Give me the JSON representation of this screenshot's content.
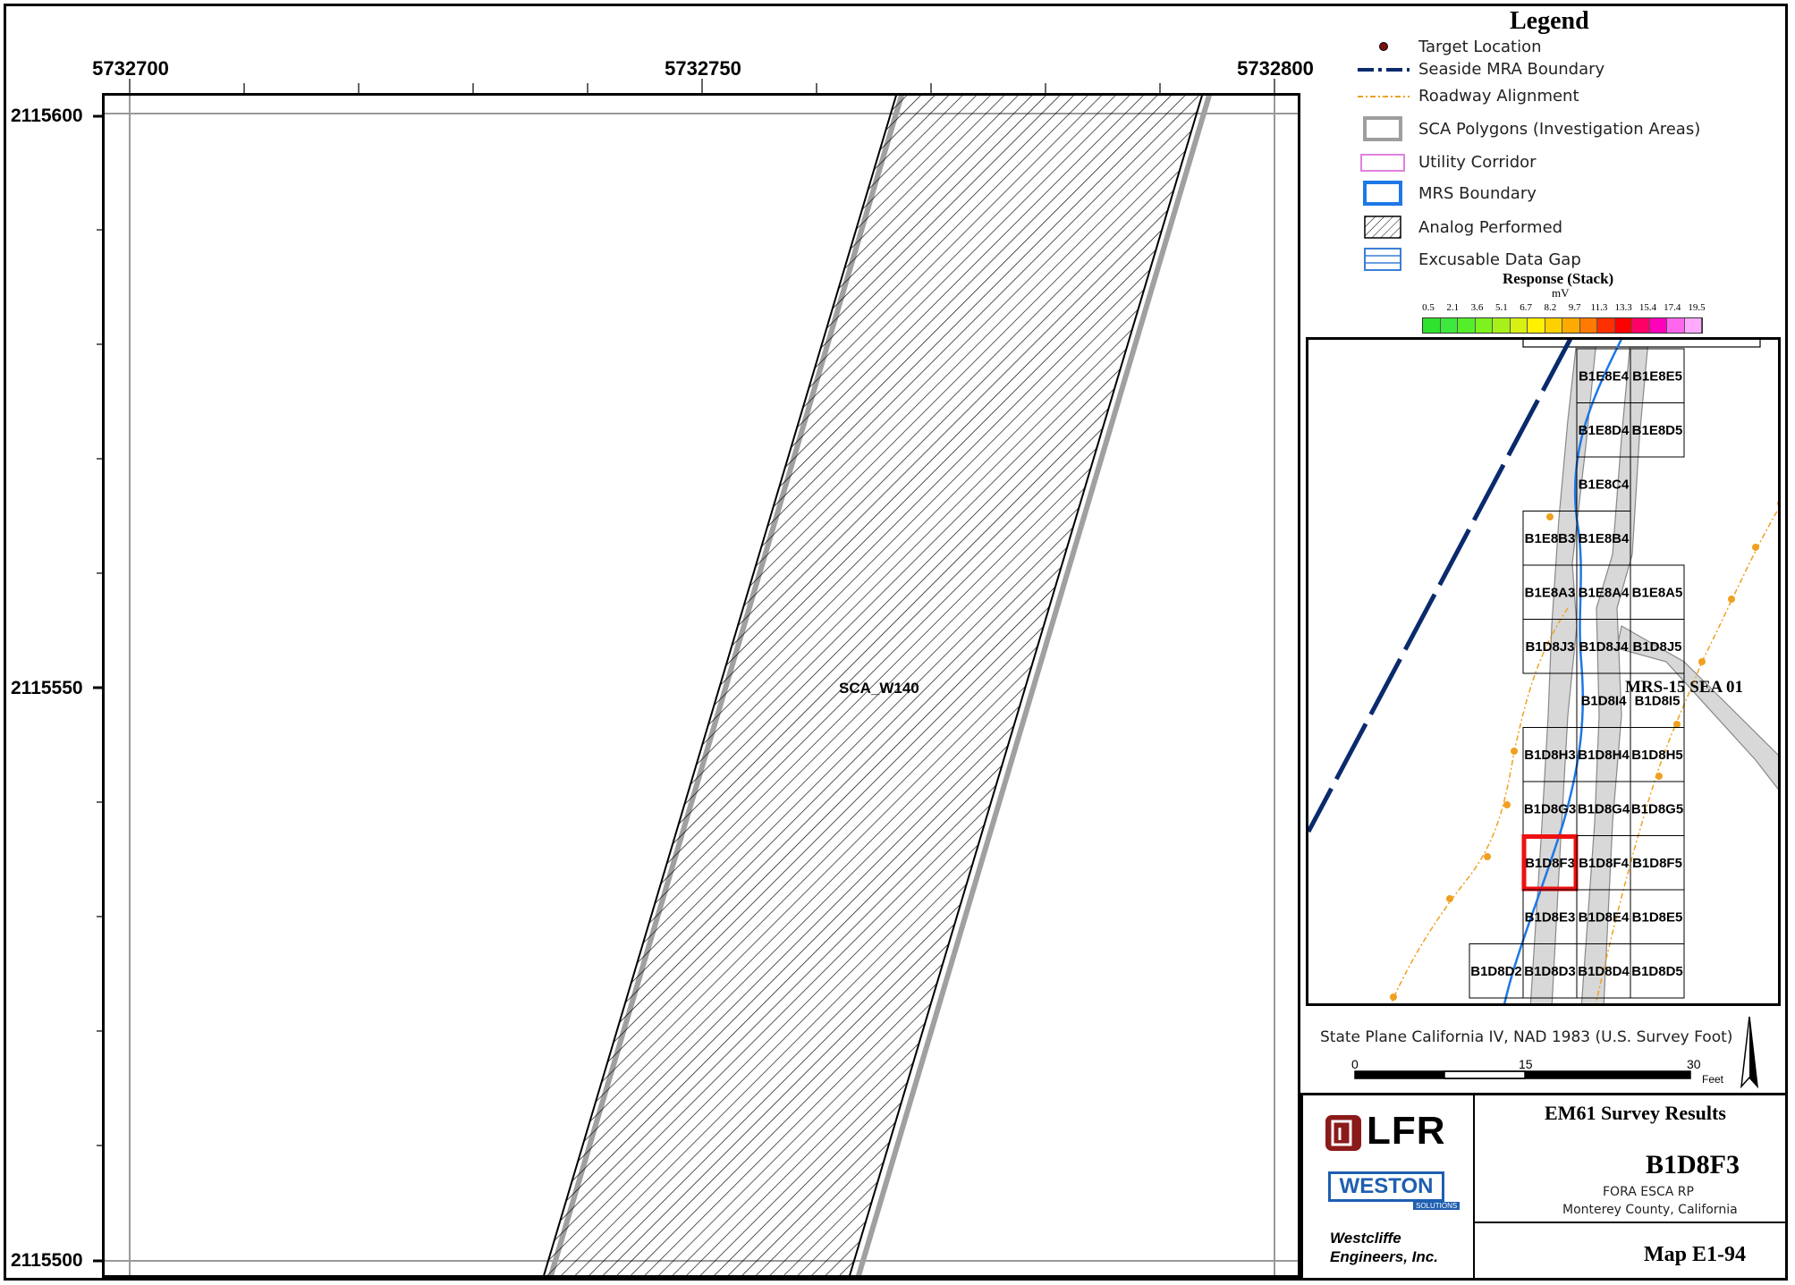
{
  "map": {
    "x_ticks": [
      "5732700",
      "5732750",
      "5732800"
    ],
    "y_ticks": [
      "2115600",
      "2115550",
      "2115500"
    ],
    "polygon_label": "SCA_W140"
  },
  "legend": {
    "title": "Legend",
    "items": [
      {
        "label": "Target Location",
        "icon": "target-dot-icon"
      },
      {
        "label": "Seaside MRA Boundary",
        "icon": "dash-dot-line-icon",
        "color": "#0a2a6e"
      },
      {
        "label": "Roadway Alignment",
        "icon": "orange-dashed-line-icon",
        "color": "#f0a020"
      },
      {
        "label": "SCA Polygons (Investigation Areas)",
        "icon": "gray-box-icon",
        "color": "#9e9e9e"
      },
      {
        "label": "Utility Corridor",
        "icon": "pink-box-icon",
        "color": "#e080e0"
      },
      {
        "label": "MRS Boundary",
        "icon": "blue-box-icon",
        "color": "#1e78e6"
      },
      {
        "label": "Analog Performed",
        "icon": "hatch-box-icon"
      },
      {
        "label": "Excusable Data Gap",
        "icon": "blue-hatch-box-icon",
        "color": "#3a7fd6"
      }
    ],
    "response": {
      "title": "Response (Stack)",
      "unit": "mV",
      "ticks": [
        "0.5",
        "2.1",
        "3.6",
        "5.1",
        "6.7",
        "8.2",
        "9.7",
        "11.3",
        "13.3",
        "15.4",
        "17.4",
        "19.5"
      ],
      "colors": [
        "#2ee22e",
        "#3ee83e",
        "#55ee2a",
        "#7ef21e",
        "#a8f01a",
        "#d8f014",
        "#fff000",
        "#ffd000",
        "#ffaa00",
        "#ff7a00",
        "#ff3000",
        "#ff0000",
        "#ff0066",
        "#ff00bb",
        "#ff66ee",
        "#ffaaff"
      ]
    }
  },
  "inset": {
    "mrs_label": "MRS-15 SEA 01",
    "cells": [
      {
        "label": "B1E8E4",
        "col": 1,
        "row": 0
      },
      {
        "label": "B1E8E5",
        "col": 2,
        "row": 0
      },
      {
        "label": "B1E8D4",
        "col": 1,
        "row": 1
      },
      {
        "label": "B1E8D5",
        "col": 2,
        "row": 1
      },
      {
        "label": "B1E8C4",
        "col": 1,
        "row": 2
      },
      {
        "label": "B1E8B3",
        "col": 0,
        "row": 3
      },
      {
        "label": "B1E8B4",
        "col": 1,
        "row": 3
      },
      {
        "label": "B1E8A3",
        "col": 0,
        "row": 4
      },
      {
        "label": "B1E8A4",
        "col": 1,
        "row": 4
      },
      {
        "label": "B1E8A5",
        "col": 2,
        "row": 4
      },
      {
        "label": "B1D8J3",
        "col": 0,
        "row": 5
      },
      {
        "label": "B1D8J4",
        "col": 1,
        "row": 5
      },
      {
        "label": "B1D8J5",
        "col": 2,
        "row": 5
      },
      {
        "label": "B1D8I4",
        "col": 1,
        "row": 6
      },
      {
        "label": "B1D8I5",
        "col": 2,
        "row": 6
      },
      {
        "label": "B1D8H3",
        "col": 0,
        "row": 7
      },
      {
        "label": "B1D8H4",
        "col": 1,
        "row": 7
      },
      {
        "label": "B1D8H5",
        "col": 2,
        "row": 7
      },
      {
        "label": "B1D8G3",
        "col": 0,
        "row": 8
      },
      {
        "label": "B1D8G4",
        "col": 1,
        "row": 8
      },
      {
        "label": "B1D8G5",
        "col": 2,
        "row": 8
      },
      {
        "label": "B1D8F3",
        "col": 0,
        "row": 9
      },
      {
        "label": "B1D8F4",
        "col": 1,
        "row": 9
      },
      {
        "label": "B1D8F5",
        "col": 2,
        "row": 9
      },
      {
        "label": "B1D8E3",
        "col": 0,
        "row": 10
      },
      {
        "label": "B1D8E4",
        "col": 1,
        "row": 10
      },
      {
        "label": "B1D8E5",
        "col": 2,
        "row": 10
      },
      {
        "label": "B1D8D2",
        "col": -1,
        "row": 11
      },
      {
        "label": "B1D8D3",
        "col": 0,
        "row": 11
      },
      {
        "label": "B1D8D4",
        "col": 1,
        "row": 11
      },
      {
        "label": "B1D8D5",
        "col": 2,
        "row": 11
      }
    ],
    "highlight": "B1D8F3"
  },
  "scale": {
    "projection": "State Plane California IV, NAD 1983 (U.S. Survey Foot)",
    "ticks": [
      "0",
      "15",
      "30"
    ],
    "unit": "Feet",
    "north": "N"
  },
  "titleblock": {
    "title": "EM61 Survey Results",
    "map_name": "B1D8F3",
    "project": "FORA ESCA RP",
    "county": "Monterey County, California",
    "map_number": "Map E1-94",
    "company1": "LFR",
    "company2": "WESTON",
    "company2_sub": "SOLUTIONS",
    "company3_line1": "Westcliffe",
    "company3_line2": "Engineers, Inc."
  }
}
